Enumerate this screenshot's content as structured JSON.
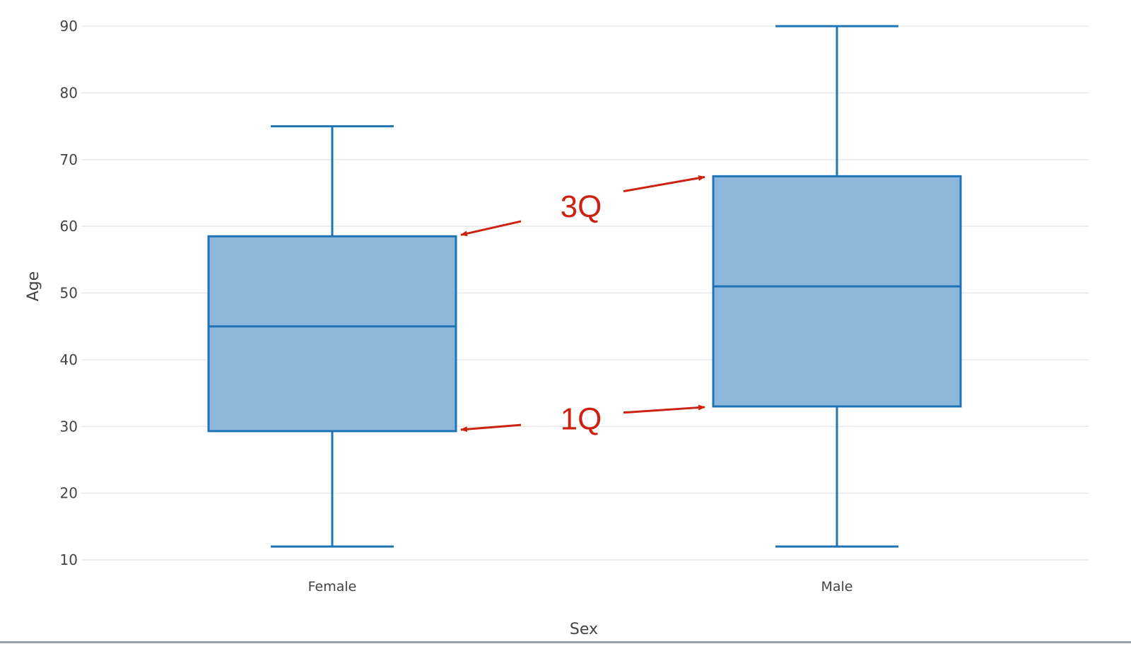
{
  "chart_data": {
    "type": "box",
    "title": "",
    "xlabel": "Sex",
    "ylabel": "Age",
    "ylim": [
      10,
      90
    ],
    "yticks": [
      10,
      20,
      30,
      40,
      50,
      60,
      70,
      80,
      90
    ],
    "grid": true,
    "categories": [
      "Female",
      "Male"
    ],
    "boxes": [
      {
        "category": "Female",
        "min": 12,
        "q1": 29.3,
        "median": 45,
        "q3": 58.5,
        "max": 75
      },
      {
        "category": "Male",
        "min": 12,
        "q1": 33,
        "median": 51,
        "q3": 67.5,
        "max": 90
      }
    ],
    "annotations": [
      {
        "text": "3Q",
        "points_to": [
          "Female.q3",
          "Male.q3"
        ]
      },
      {
        "text": "1Q",
        "points_to": [
          "Female.q1",
          "Male.q1"
        ]
      }
    ],
    "colors": {
      "box_fill": "#8db8dc",
      "box_stroke": "#1f74b5",
      "annotation": "#cc2211"
    }
  }
}
